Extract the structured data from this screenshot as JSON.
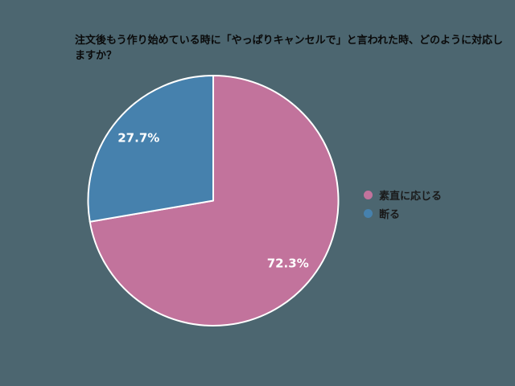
{
  "title": {
    "text": "注文後もう作り始めている時に「やっぱりキャンセルで」と言われた時、どのように対応しますか？",
    "lines": [
      "注文後もう作り始めている時に「やっぱりキャンセルで」と言われた時、どのように対応し",
      "ますか？"
    ]
  },
  "colors": {
    "background": "#4c6670",
    "title_text": "#0a0a0a",
    "legend_text": "#1a1a1a",
    "slice_label_text": "#ffffff",
    "slice_border": "#ffffff"
  },
  "chart_data": {
    "type": "pie",
    "title": "注文後もう作り始めている時に「やっぱりキャンセルで」と言われた時、どのように対応しますか？",
    "start_angle": "top",
    "direction": "clockwise",
    "legend_position": "right",
    "slices": [
      {
        "label": "素直に応じる",
        "value": 72.3,
        "percent_label": "72.3%",
        "color": "#c2739c"
      },
      {
        "label": "断る",
        "value": 27.7,
        "percent_label": "27.7%",
        "color": "#4681ad"
      }
    ]
  }
}
